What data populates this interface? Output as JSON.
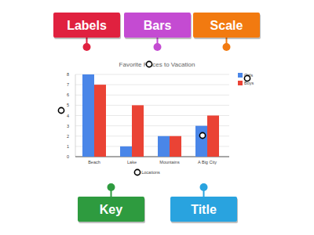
{
  "chart_data": {
    "type": "bar",
    "title": "Favorite Places to Vacation",
    "x_label": "Locations",
    "categories": [
      "Beach",
      "Lake",
      "Mountains",
      "A Big City"
    ],
    "series": [
      {
        "name": "Girls",
        "color": "#4a86e8",
        "values": [
          8,
          1,
          2,
          3
        ]
      },
      {
        "name": "Boys",
        "color": "#ea4335",
        "values": [
          7,
          5,
          2,
          4
        ]
      }
    ],
    "ylim": [
      0,
      8
    ],
    "yticks": [
      0,
      1,
      2,
      3,
      4,
      5,
      6,
      7,
      8
    ],
    "grid": true,
    "legend": "top-right"
  },
  "tags": [
    {
      "text": "Labels",
      "color": "#e0213f"
    },
    {
      "text": "Bars",
      "color": "#c44bd2"
    },
    {
      "text": "Scale",
      "color": "#f27a10"
    },
    {
      "text": "Key",
      "color": "#2e9b3f"
    },
    {
      "text": "Title",
      "color": "#29a3df"
    }
  ]
}
